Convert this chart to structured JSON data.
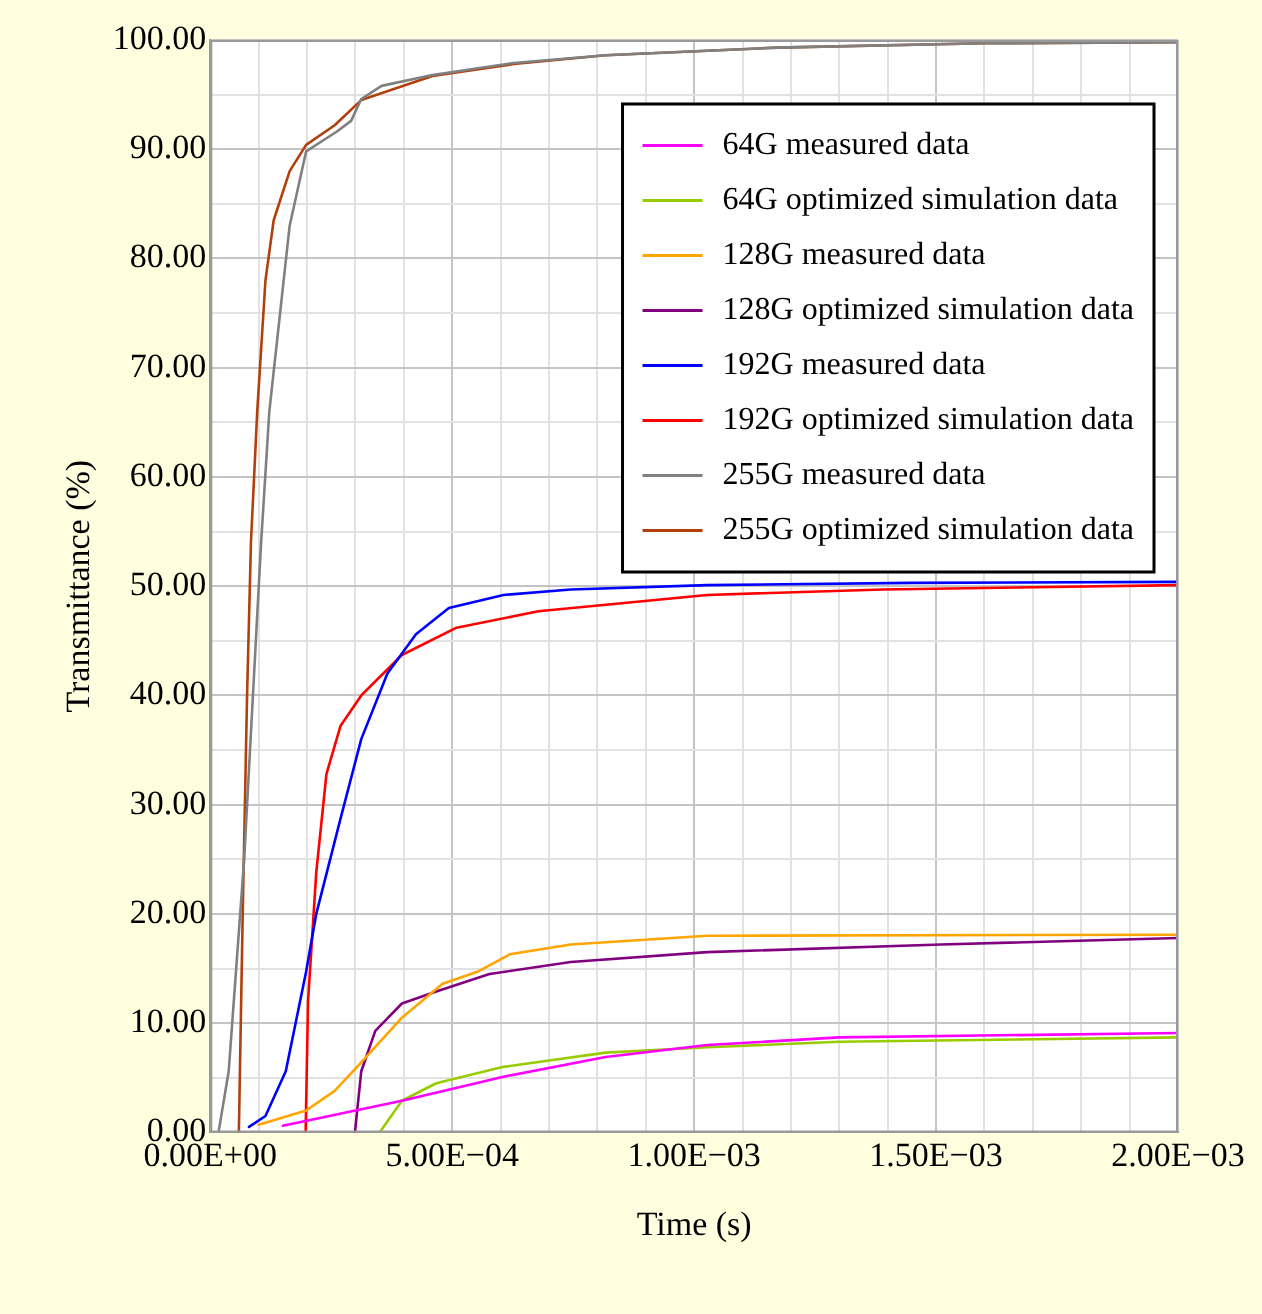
{
  "chart_data": {
    "type": "line",
    "xlabel": "Time (s)",
    "ylabel": "Transmittance (%)",
    "xlim": [
      0,
      0.002
    ],
    "ylim": [
      0,
      100
    ],
    "xticks": [
      {
        "value": 0,
        "label": "0.00E+00"
      },
      {
        "value": 0.0001,
        "label": null
      },
      {
        "value": 0.0002,
        "label": null
      },
      {
        "value": 0.0003,
        "label": null
      },
      {
        "value": 0.0004,
        "label": null
      },
      {
        "value": 0.0005,
        "label": "5.00E−04"
      },
      {
        "value": 0.0006,
        "label": null
      },
      {
        "value": 0.0007,
        "label": null
      },
      {
        "value": 0.0008,
        "label": null
      },
      {
        "value": 0.0009,
        "label": null
      },
      {
        "value": 0.001,
        "label": "1.00E−03"
      },
      {
        "value": 0.0011,
        "label": null
      },
      {
        "value": 0.0012,
        "label": null
      },
      {
        "value": 0.0013,
        "label": null
      },
      {
        "value": 0.0014,
        "label": null
      },
      {
        "value": 0.0015,
        "label": "1.50E−03"
      },
      {
        "value": 0.0016,
        "label": null
      },
      {
        "value": 0.0017,
        "label": null
      },
      {
        "value": 0.0018,
        "label": null
      },
      {
        "value": 0.0019,
        "label": null
      },
      {
        "value": 0.002,
        "label": "2.00E−03"
      }
    ],
    "yticks": [
      {
        "value": 0,
        "label": "0.00"
      },
      {
        "value": 5,
        "label": null
      },
      {
        "value": 10,
        "label": "10.00"
      },
      {
        "value": 15,
        "label": null
      },
      {
        "value": 20,
        "label": "20.00"
      },
      {
        "value": 25,
        "label": null
      },
      {
        "value": 30,
        "label": "30.00"
      },
      {
        "value": 35,
        "label": null
      },
      {
        "value": 40,
        "label": "40.00"
      },
      {
        "value": 45,
        "label": null
      },
      {
        "value": 50,
        "label": "50.00"
      },
      {
        "value": 55,
        "label": null
      },
      {
        "value": 60,
        "label": "60.00"
      },
      {
        "value": 65,
        "label": null
      },
      {
        "value": 70,
        "label": "70.00"
      },
      {
        "value": 75,
        "label": null
      },
      {
        "value": 80,
        "label": "80.00"
      },
      {
        "value": 85,
        "label": null
      },
      {
        "value": 90,
        "label": "90.00"
      },
      {
        "value": 95,
        "label": null
      },
      {
        "value": 100,
        "label": "100.00"
      }
    ],
    "grid": true,
    "legend": "top right",
    "marker": "none",
    "line_style": "solid",
    "series": [
      {
        "name": "64G measured data",
        "color": "#ff00ff",
        "x": [
          0.00015,
          0.000396,
          0.000606,
          0.000817,
          0.001027,
          0.0013,
          0.002
        ],
        "values": [
          0.6,
          2.9,
          5.1,
          6.9,
          8,
          8.7,
          9.1
        ]
      },
      {
        "name": "64G optimized simulation data",
        "color": "#99cc00",
        "x": [
          0.00035,
          0.000396,
          0.000467,
          0.000606,
          0.000817,
          0.001027,
          0.0013,
          0.002
        ],
        "values": [
          0,
          2.9,
          4.5,
          6,
          7.3,
          7.8,
          8.3,
          8.7
        ]
      },
      {
        "name": "128G measured data",
        "color": "#ffa500",
        "x": [
          0.0001,
          0.000198,
          0.000257,
          0.000312,
          0.000396,
          0.00048,
          0.000552,
          0.000619,
          0.000745,
          0.001027,
          0.002
        ],
        "values": [
          0.7,
          2,
          3.8,
          6.4,
          10.5,
          13.6,
          14.7,
          16.3,
          17.2,
          18,
          18.1
        ]
      },
      {
        "name": "128G optimized simulation data",
        "color": "#800080",
        "x": [
          0.000299,
          0.000312,
          0.000341,
          0.000396,
          0.000467,
          0.000577,
          0.000745,
          0.001027,
          0.00151,
          0.002
        ],
        "values": [
          0,
          5.6,
          9.3,
          11.8,
          12.9,
          14.5,
          15.6,
          16.5,
          17.2,
          17.8
        ]
      },
      {
        "name": "192G measured data",
        "color": "#0000ff",
        "x": [
          8e-05,
          0.000114,
          0.000156,
          0.000198,
          0.000219,
          0.000269,
          0.000312,
          0.000366,
          0.000425,
          0.000493,
          0.000606,
          0.000745,
          0.001027,
          0.00145,
          0.002
        ],
        "values": [
          0.5,
          1.5,
          5.6,
          14.7,
          20,
          28.7,
          36,
          42,
          45.6,
          48,
          49.2,
          49.7,
          50.1,
          50.3,
          50.4
        ]
      },
      {
        "name": "192G optimized simulation data",
        "color": "#ff0000",
        "x": [
          0.000197,
          0.000202,
          0.000219,
          0.00024,
          0.000269,
          0.000312,
          0.000396,
          0.000509,
          0.000678,
          0.001027,
          0.00139,
          0.002
        ],
        "values": [
          0,
          12,
          23.8,
          32.8,
          37.2,
          40,
          43.7,
          46.2,
          47.7,
          49.2,
          49.7,
          50.1
        ]
      },
      {
        "name": "255G measured data",
        "color": "#808080",
        "x": [
          1.7e-05,
          3.8e-05,
          7e-05,
          0.000105,
          0.000122,
          0.000164,
          0.000198,
          0.000261,
          0.000291,
          0.000312,
          0.000354,
          0.000459,
          0.000627,
          0.000817,
          0.00117,
          0.0016,
          0.002
        ],
        "values": [
          0,
          5.6,
          25,
          54,
          66,
          83,
          89.8,
          91.6,
          92.6,
          94.6,
          95.8,
          96.8,
          97.9,
          98.6,
          99.3,
          99.7,
          99.8
        ]
      },
      {
        "name": "255G optimized simulation data",
        "color": "#b0400c",
        "x": [
          5.9e-05,
          6.7e-05,
          7.6e-05,
          8.4e-05,
          9.7e-05,
          0.000114,
          0.000131,
          0.000164,
          0.000198,
          0.000257,
          0.000312,
          0.000459,
          0.000627,
          0.000817,
          0.00117,
          0.0016,
          0.002
        ],
        "values": [
          0,
          20,
          40,
          54,
          66,
          78,
          83.5,
          88,
          90.4,
          92.2,
          94.5,
          96.7,
          97.8,
          98.6,
          99.3,
          99.7,
          99.8
        ]
      }
    ]
  }
}
